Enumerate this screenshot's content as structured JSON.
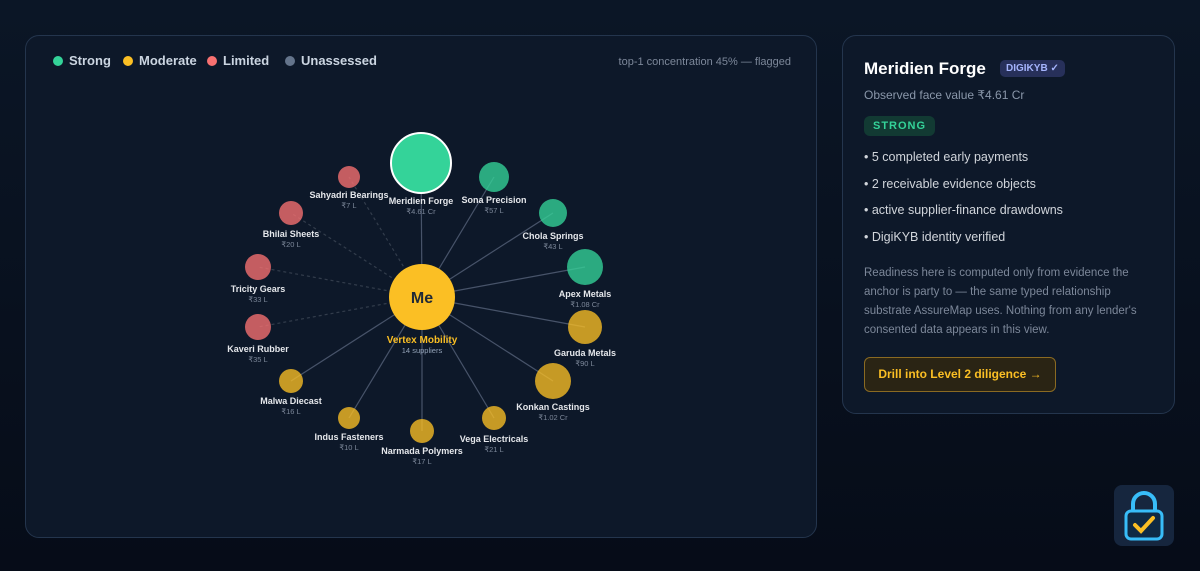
{
  "legend": [
    {
      "label": "Strong",
      "color": "#34d399",
      "nodes": [
        {
          "name": "Meridien Forge",
          "value": "₹4.61 Cr"
        },
        {
          "name": "Sona Precision",
          "value": "₹57 L"
        },
        {
          "name": "Chola Springs",
          "value": "₹43 L"
        },
        {
          "name": "Apex Metals",
          "value": "₹1.08 Cr"
        }
      ]
    },
    {
      "label": "Moderate",
      "color": "#fbbf24",
      "nodes": [
        {
          "name": "Garuda Metals",
          "value": "₹90 L"
        },
        {
          "name": "Konkan Castings",
          "value": "₹1.02 Cr"
        },
        {
          "name": "Vega Electricals",
          "value": "₹21 L"
        },
        {
          "name": "Narmada Polymers",
          "value": "₹17 L"
        },
        {
          "name": "Indus Fasteners",
          "value": "₹10 L"
        },
        {
          "name": "Malwa Diecast",
          "value": "₹16 L"
        }
      ]
    },
    {
      "label": "Limited",
      "color": "#f87171",
      "nodes": [
        {
          "name": "Kaveri Rubber",
          "value": "₹35 L"
        },
        {
          "name": "Tricity Gears",
          "value": "₹33 L"
        },
        {
          "name": "Bhilai Sheets",
          "value": "₹20 L"
        },
        {
          "name": "Sahyadri Bearings",
          "value": "₹7 L"
        }
      ]
    },
    {
      "label": "Unassessed",
      "color": "#64748b"
    }
  ],
  "concentration_note": "top-1 concentration 45% — flagged",
  "center": {
    "label": "Me",
    "name": "Vertex Mobility",
    "sub": "14 suppliers"
  },
  "detail": {
    "title": "Meridien Forge",
    "badge": "DIGIKYB ✓",
    "face_value": "Observed face value ₹4.61 Cr",
    "rating": "STRONG",
    "bullets": [
      "• 5 completed early payments",
      "• 2 receivable evidence objects",
      "• active supplier-finance drawdowns",
      "• DigiKYB identity verified"
    ],
    "note": "Readiness here is computed only from evidence the anchor is party to — the same typed relationship substrate AssureMap uses. Nothing from any lender's consented data appears in this view.",
    "button": "Drill into Level 2 diligence →"
  }
}
